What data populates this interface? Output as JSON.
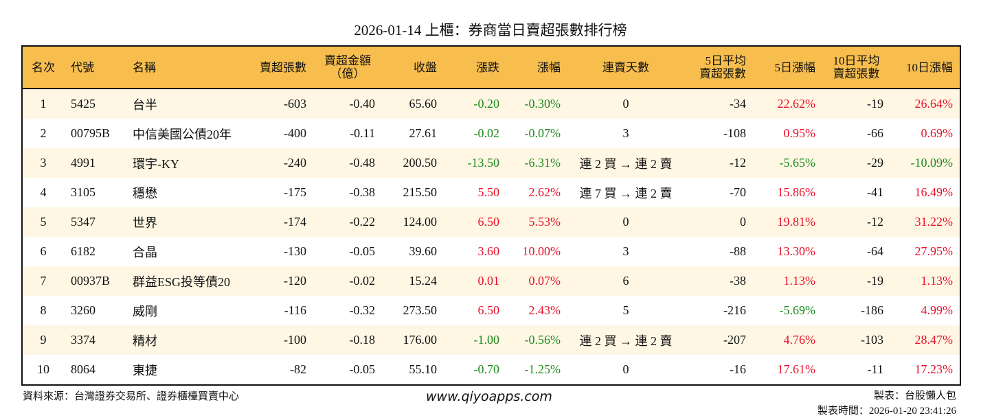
{
  "title": "2026-01-14 上櫃：券商當日賣超張數排行榜",
  "colors": {
    "header_bg": "#F7BE4E",
    "row_alt_bg": "#FFF7E4",
    "up": "#E8102A",
    "down": "#1C8A1C"
  },
  "columns": [
    "名次",
    "代號",
    "名稱",
    "賣超張數",
    "賣超金額\n（億）",
    "收盤",
    "漲跌",
    "漲幅",
    "連賣天數",
    "5日平均\n賣超張數",
    "5日漲幅",
    "10日平均\n賣超張數",
    "10日漲幅"
  ],
  "rows": [
    [
      "1",
      "5425",
      "台半",
      "-603",
      "-0.40",
      "65.60",
      "-0.20",
      "-0.30%",
      "0",
      "-34",
      "22.62%",
      "-19",
      "26.64%"
    ],
    [
      "2",
      "00795B",
      "中信美國公債20年",
      "-400",
      "-0.11",
      "27.61",
      "-0.02",
      "-0.07%",
      "3",
      "-108",
      "0.95%",
      "-66",
      "0.69%"
    ],
    [
      "3",
      "4991",
      "環宇-KY",
      "-240",
      "-0.48",
      "200.50",
      "-13.50",
      "-6.31%",
      "連 2 買 → 連 2 賣",
      "-12",
      "-5.65%",
      "-29",
      "-10.09%"
    ],
    [
      "4",
      "3105",
      "穩懋",
      "-175",
      "-0.38",
      "215.50",
      "5.50",
      "2.62%",
      "連 7 買 → 連 2 賣",
      "-70",
      "15.86%",
      "-41",
      "16.49%"
    ],
    [
      "5",
      "5347",
      "世界",
      "-174",
      "-0.22",
      "124.00",
      "6.50",
      "5.53%",
      "0",
      "0",
      "19.81%",
      "-12",
      "31.22%"
    ],
    [
      "6",
      "6182",
      "合晶",
      "-130",
      "-0.05",
      "39.60",
      "3.60",
      "10.00%",
      "3",
      "-88",
      "13.30%",
      "-64",
      "27.95%"
    ],
    [
      "7",
      "00937B",
      "群益ESG投等債20",
      "-120",
      "-0.02",
      "15.24",
      "0.01",
      "0.07%",
      "6",
      "-38",
      "1.13%",
      "-19",
      "1.13%"
    ],
    [
      "8",
      "3260",
      "威剛",
      "-116",
      "-0.32",
      "273.50",
      "6.50",
      "2.43%",
      "5",
      "-216",
      "-5.69%",
      "-186",
      "4.99%"
    ],
    [
      "9",
      "3374",
      "精材",
      "-100",
      "-0.18",
      "176.00",
      "-1.00",
      "-0.56%",
      "連 2 買 → 連 2 賣",
      "-207",
      "4.76%",
      "-103",
      "28.47%"
    ],
    [
      "10",
      "8064",
      "東捷",
      "-82",
      "-0.05",
      "55.10",
      "-0.70",
      "-1.25%",
      "0",
      "-16",
      "17.61%",
      "-11",
      "17.23%"
    ]
  ],
  "footer": {
    "source": "資料來源：台灣證券交易所、證券櫃檯買賣中心",
    "website": "www.qiyoapps.com",
    "maker": "製表：台股懶人包",
    "made_time": "製表時間：2026-01-20 23:41:26"
  }
}
